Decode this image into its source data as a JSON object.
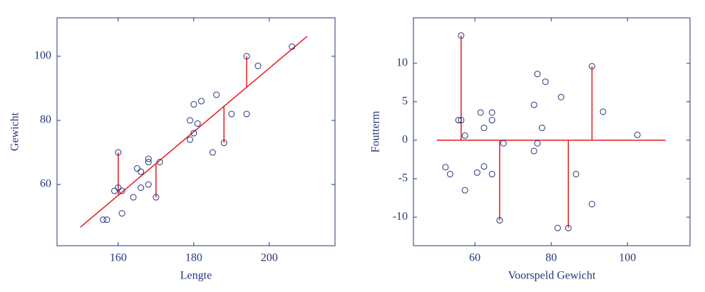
{
  "chart_data": [
    {
      "type": "scatter",
      "xlabel": "Lengte",
      "ylabel": "Gewicht",
      "xlim": [
        143.8,
        217.4
      ],
      "ylim": [
        40.9,
        112
      ],
      "xticks": [
        160,
        180,
        200
      ],
      "yticks": [
        60,
        80,
        100
      ],
      "axis_color": "#26357a",
      "points": {
        "color": "#26357a",
        "x": [
          156,
          157,
          159,
          160,
          160,
          161,
          161,
          164,
          165,
          166,
          166,
          168,
          168,
          168,
          170,
          171,
          179,
          179,
          180,
          180,
          181,
          182,
          186,
          185,
          188,
          190,
          194,
          194,
          197,
          206
        ],
        "y": [
          49,
          49,
          58,
          59,
          70,
          58,
          51,
          56,
          65,
          64,
          59,
          68,
          67,
          60,
          56,
          67,
          80,
          74,
          85,
          76,
          79,
          86,
          88,
          70,
          73,
          82,
          100,
          82,
          97,
          103
        ]
      },
      "fit_line": {
        "color": "#e8191d",
        "x": [
          150,
          210
        ],
        "y": [
          46.7,
          106.2
        ]
      },
      "residuals": [
        {
          "x": [
            160,
            160
          ],
          "y": [
            70,
            56.8
          ]
        },
        {
          "x": [
            170,
            170
          ],
          "y": [
            56,
            66.7
          ]
        },
        {
          "x": [
            188,
            188
          ],
          "y": [
            73,
            84.6
          ]
        },
        {
          "x": [
            194,
            194
          ],
          "y": [
            100,
            90.5
          ]
        }
      ]
    },
    {
      "type": "scatter",
      "xlabel": "Voorspeld Gewicht",
      "ylabel": "Foutterm",
      "xlim": [
        43.9,
        116.4
      ],
      "ylim": [
        -13.7,
        15.9
      ],
      "xticks": [
        60,
        80,
        100
      ],
      "yticks": [
        -10,
        -5,
        0,
        5,
        10
      ],
      "axis_color": "#26357a",
      "points": {
        "color": "#26357a",
        "x": [
          56.4,
          55.7,
          56.4,
          57.4,
          52.3,
          53.5,
          57.4,
          60.6,
          61.5,
          62.4,
          62.4,
          64.5,
          64.5,
          64.5,
          66.5,
          67.5,
          75.5,
          75.5,
          76.4,
          76.4,
          77.6,
          78.5,
          81.7,
          82.6,
          84.5,
          86.5,
          90.7,
          90.7,
          93.6,
          102.6
        ],
        "y": [
          13.6,
          2.6,
          2.6,
          0.6,
          -3.5,
          -4.4,
          -6.5,
          -4.2,
          3.6,
          1.6,
          -3.4,
          3.6,
          2.6,
          -4.4,
          -10.4,
          -0.4,
          4.6,
          -1.4,
          -0.4,
          8.6,
          1.6,
          7.6,
          -11.4,
          5.6,
          -11.4,
          -4.4,
          9.6,
          -8.3,
          3.7,
          0.7
        ]
      },
      "fit_line": {
        "color": "#e8191d",
        "x": [
          50,
          110
        ],
        "y": [
          0,
          0
        ]
      },
      "residuals": [
        {
          "x": [
            56.4,
            56.4
          ],
          "y": [
            0,
            13.6
          ]
        },
        {
          "x": [
            66.5,
            66.5
          ],
          "y": [
            0,
            -10.4
          ]
        },
        {
          "x": [
            84.5,
            84.5
          ],
          "y": [
            0,
            -11.4
          ]
        },
        {
          "x": [
            90.7,
            90.7
          ],
          "y": [
            0,
            9.6
          ]
        }
      ]
    }
  ]
}
